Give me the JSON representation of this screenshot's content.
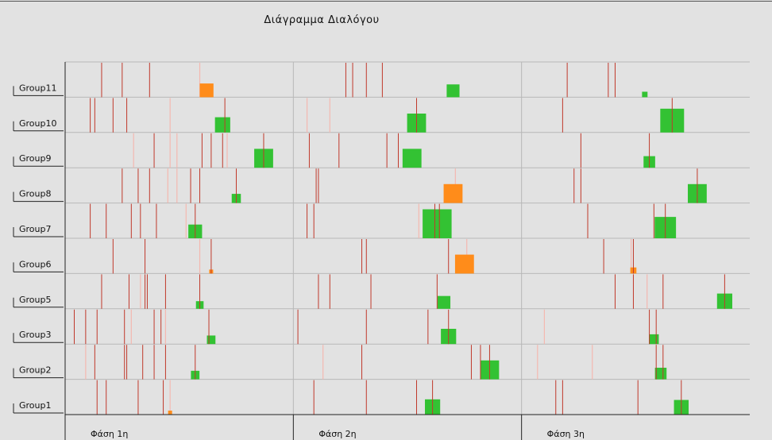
{
  "chart_data": {
    "type": "timeline",
    "title": "Διάγραμμα Διαλόγου",
    "phases": [
      "Φάση 1η",
      "Φάση 2η",
      "Φάση 3η"
    ],
    "groups": [
      "Group11",
      "Group10",
      "Group9",
      "Group8",
      "Group7",
      "Group6",
      "Group5",
      "Group3",
      "Group2",
      "Group1"
    ],
    "colors": {
      "event_line": "#c0392b",
      "faint_line": "#f4b8b0",
      "green_block": "#33c233",
      "orange_block": "#ff8c1a",
      "grid": "#b8b8b8"
    },
    "rows": [
      {
        "group": "Group11",
        "lines": [
          [
            0,
            0.16
          ],
          [
            0,
            0.25
          ],
          [
            0,
            0.37
          ]
        ],
        "faint": [
          [
            0,
            0.59
          ]
        ],
        "blocks": [
          {
            "phase": 0,
            "t": 0.62,
            "size": 0.45,
            "color": "orange"
          },
          {
            "phase": 1,
            "t": 0.7,
            "size": 0.42,
            "color": "green"
          },
          {
            "phase": 2,
            "t": 0.54,
            "size": 0.18,
            "color": "green"
          }
        ],
        "lines2": [
          [
            1,
            0.23
          ],
          [
            1,
            0.26
          ],
          [
            1,
            0.32
          ],
          [
            1,
            0.39
          ],
          [
            2,
            0.2
          ],
          [
            2,
            0.38
          ],
          [
            2,
            0.41
          ]
        ]
      },
      {
        "group": "Group10",
        "lines": [
          [
            0,
            0.11
          ],
          [
            0,
            0.13
          ],
          [
            0,
            0.21
          ],
          [
            0,
            0.27
          ],
          [
            0,
            0.7
          ],
          [
            1,
            0.54
          ],
          [
            2,
            0.18
          ],
          [
            2,
            0.66
          ]
        ],
        "faint": [
          [
            0,
            0.46
          ],
          [
            1,
            0.06
          ],
          [
            1,
            0.16
          ]
        ],
        "blocks": [
          {
            "phase": 0,
            "t": 0.69,
            "size": 0.5,
            "color": "green"
          },
          {
            "phase": 1,
            "t": 0.54,
            "size": 0.62,
            "color": "green"
          },
          {
            "phase": 2,
            "t": 0.66,
            "size": 0.78,
            "color": "green"
          }
        ]
      },
      {
        "group": "Group9",
        "lines": [
          [
            0,
            0.39
          ],
          [
            0,
            0.6
          ],
          [
            0,
            0.64
          ],
          [
            0,
            0.69
          ],
          [
            0,
            0.87
          ],
          [
            1,
            0.07
          ],
          [
            1,
            0.2
          ],
          [
            1,
            0.41
          ],
          [
            1,
            0.46
          ],
          [
            2,
            0.26
          ],
          [
            2,
            0.56
          ]
        ],
        "faint": [
          [
            0,
            0.3
          ],
          [
            0,
            0.46
          ],
          [
            0,
            0.49
          ],
          [
            0,
            0.71
          ]
        ],
        "blocks": [
          {
            "phase": 0,
            "t": 0.87,
            "size": 0.62,
            "color": "green"
          },
          {
            "phase": 1,
            "t": 0.52,
            "size": 0.62,
            "color": "green"
          },
          {
            "phase": 2,
            "t": 0.56,
            "size": 0.38,
            "color": "green"
          }
        ]
      },
      {
        "group": "Group8",
        "lines": [
          [
            0,
            0.25
          ],
          [
            0,
            0.32
          ],
          [
            0,
            0.37
          ],
          [
            0,
            0.55
          ],
          [
            0,
            0.59
          ],
          [
            0,
            0.75
          ],
          [
            1,
            0.1
          ],
          [
            1,
            0.11
          ],
          [
            2,
            0.23
          ],
          [
            2,
            0.26
          ],
          [
            2,
            0.77
          ]
        ],
        "faint": [
          [
            0,
            0.45
          ],
          [
            0,
            0.49
          ],
          [
            1,
            0.71
          ]
        ],
        "blocks": [
          {
            "phase": 0,
            "t": 0.75,
            "size": 0.3,
            "color": "green"
          },
          {
            "phase": 1,
            "t": 0.7,
            "size": 0.62,
            "color": "orange"
          },
          {
            "phase": 2,
            "t": 0.77,
            "size": 0.62,
            "color": "green"
          }
        ]
      },
      {
        "group": "Group7",
        "lines": [
          [
            0,
            0.11
          ],
          [
            0,
            0.18
          ],
          [
            0,
            0.29
          ],
          [
            0,
            0.33
          ],
          [
            0,
            0.4
          ],
          [
            0,
            0.57
          ],
          [
            1,
            0.06
          ],
          [
            1,
            0.09
          ],
          [
            1,
            0.62
          ],
          [
            1,
            0.64
          ],
          [
            2,
            0.29
          ],
          [
            2,
            0.58
          ],
          [
            2,
            0.63
          ]
        ],
        "faint": [
          [
            0,
            0.53
          ],
          [
            1,
            0.55
          ]
        ],
        "blocks": [
          {
            "phase": 0,
            "t": 0.57,
            "size": 0.45,
            "color": "green"
          },
          {
            "phase": 1,
            "t": 0.63,
            "size": 0.95,
            "color": "green"
          },
          {
            "phase": 2,
            "t": 0.63,
            "size": 0.7,
            "color": "green"
          }
        ]
      },
      {
        "group": "Group6",
        "lines": [
          [
            0,
            0.21
          ],
          [
            0,
            0.35
          ],
          [
            0,
            0.64
          ],
          [
            1,
            0.3
          ],
          [
            1,
            0.32
          ],
          [
            1,
            0.68
          ],
          [
            2,
            0.36
          ],
          [
            2,
            0.49
          ]
        ],
        "faint": [
          [
            0,
            0.59
          ],
          [
            1,
            0.76
          ],
          [
            2,
            0.48
          ]
        ],
        "blocks": [
          {
            "phase": 0,
            "t": 0.64,
            "size": 0.1,
            "color": "orange"
          },
          {
            "phase": 1,
            "t": 0.75,
            "size": 0.62,
            "color": "orange"
          },
          {
            "phase": 2,
            "t": 0.49,
            "size": 0.2,
            "color": "orange"
          }
        ]
      },
      {
        "group": "Group5",
        "lines": [
          [
            0,
            0.16
          ],
          [
            0,
            0.28
          ],
          [
            0,
            0.35
          ],
          [
            0,
            0.36
          ],
          [
            0,
            0.44
          ],
          [
            0,
            0.59
          ],
          [
            1,
            0.11
          ],
          [
            1,
            0.16
          ],
          [
            1,
            0.34
          ],
          [
            1,
            0.63
          ],
          [
            2,
            0.41
          ],
          [
            2,
            0.49
          ],
          [
            2,
            0.62
          ],
          [
            2,
            0.89
          ]
        ],
        "faint": [
          [
            0,
            0.33
          ],
          [
            2,
            0.55
          ]
        ],
        "blocks": [
          {
            "phase": 0,
            "t": 0.59,
            "size": 0.25,
            "color": "green"
          },
          {
            "phase": 1,
            "t": 0.66,
            "size": 0.42,
            "color": "green"
          },
          {
            "phase": 2,
            "t": 0.89,
            "size": 0.5,
            "color": "green"
          }
        ]
      },
      {
        "group": "Group3",
        "lines": [
          [
            0,
            0.04
          ],
          [
            0,
            0.09
          ],
          [
            0,
            0.14
          ],
          [
            0,
            0.26
          ],
          [
            0,
            0.39
          ],
          [
            0,
            0.42
          ],
          [
            0,
            0.63
          ],
          [
            1,
            0.02
          ],
          [
            1,
            0.32
          ],
          [
            1,
            0.59
          ],
          [
            1,
            0.68
          ],
          [
            2,
            0.56
          ],
          [
            2,
            0.59
          ]
        ],
        "faint": [
          [
            0,
            0.29
          ],
          [
            0,
            0.44
          ],
          [
            2,
            0.1
          ]
        ],
        "blocks": [
          {
            "phase": 0,
            "t": 0.64,
            "size": 0.28,
            "color": "green"
          },
          {
            "phase": 1,
            "t": 0.68,
            "size": 0.5,
            "color": "green"
          },
          {
            "phase": 2,
            "t": 0.58,
            "size": 0.32,
            "color": "green"
          }
        ]
      },
      {
        "group": "Group2",
        "lines": [
          [
            0,
            0.13
          ],
          [
            0,
            0.26
          ],
          [
            0,
            0.27
          ],
          [
            0,
            0.34
          ],
          [
            0,
            0.39
          ],
          [
            0,
            0.44
          ],
          [
            0,
            0.57
          ],
          [
            1,
            0.3
          ],
          [
            1,
            0.78
          ],
          [
            1,
            0.82
          ],
          [
            1,
            0.86
          ],
          [
            2,
            0.59
          ],
          [
            2,
            0.62
          ]
        ],
        "faint": [
          [
            0,
            0.09
          ],
          [
            1,
            0.13
          ],
          [
            2,
            0.07
          ],
          [
            2,
            0.31
          ]
        ],
        "blocks": [
          {
            "phase": 0,
            "t": 0.57,
            "size": 0.28,
            "color": "green"
          },
          {
            "phase": 1,
            "t": 0.86,
            "size": 0.62,
            "color": "green"
          },
          {
            "phase": 2,
            "t": 0.61,
            "size": 0.38,
            "color": "green"
          }
        ]
      },
      {
        "group": "Group1",
        "lines": [
          [
            0,
            0.14
          ],
          [
            0,
            0.18
          ],
          [
            0,
            0.32
          ],
          [
            0,
            0.43
          ],
          [
            1,
            0.09
          ],
          [
            1,
            0.32
          ],
          [
            1,
            0.54
          ],
          [
            1,
            0.61
          ],
          [
            2,
            0.15
          ],
          [
            2,
            0.18
          ],
          [
            2,
            0.51
          ],
          [
            2,
            0.7
          ]
        ],
        "faint": [
          [
            0,
            0.46
          ]
        ],
        "blocks": [
          {
            "phase": 0,
            "t": 0.46,
            "size": 0.12,
            "color": "orange"
          },
          {
            "phase": 1,
            "t": 0.61,
            "size": 0.5,
            "color": "green"
          },
          {
            "phase": 2,
            "t": 0.7,
            "size": 0.48,
            "color": "green"
          }
        ]
      }
    ]
  }
}
